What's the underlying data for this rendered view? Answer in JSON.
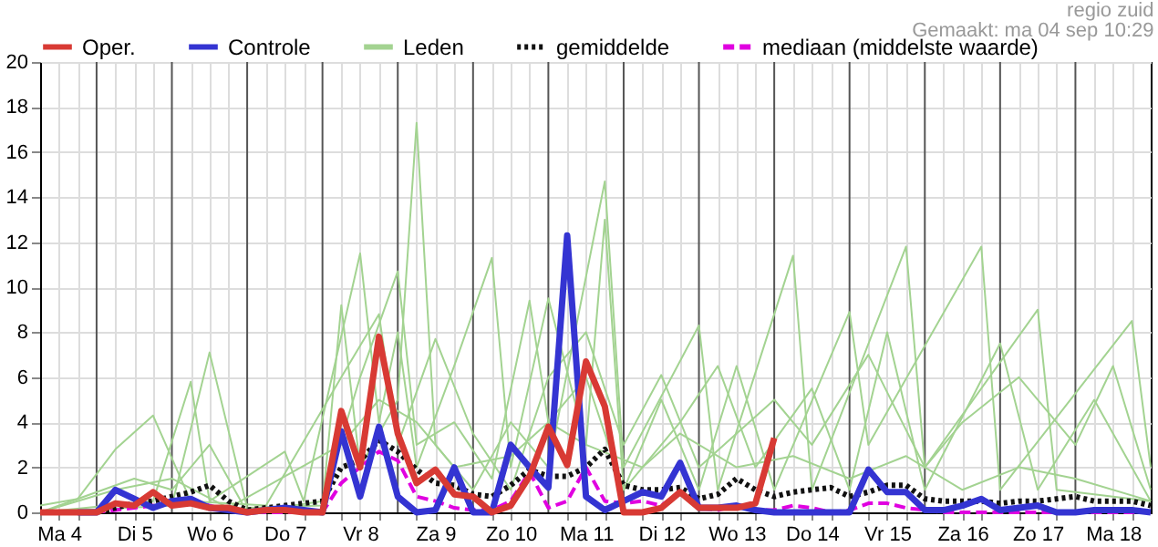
{
  "chart_data": {
    "type": "line",
    "subtitle": "regio zuid",
    "annotations": [
      "Gemaakt: ma 04 sep 10:29"
    ],
    "legend": "top",
    "grid": true,
    "x": [
      "--09-04T06:00",
      "--09-04T12:00",
      "--09-04T18:00",
      "--09-05T00:00",
      "--09-05T06:00",
      "--09-05T12:00",
      "--09-05T18:00",
      "--09-06T00:00",
      "--09-06T06:00",
      "--09-06T12:00",
      "--09-06T18:00",
      "--09-07T00:00",
      "--09-07T06:00",
      "--09-07T12:00",
      "--09-07T18:00",
      "--09-08T00:00",
      "--09-08T06:00",
      "--09-08T12:00",
      "--09-08T18:00",
      "--09-09T00:00",
      "--09-09T06:00",
      "--09-09T12:00",
      "--09-09T18:00",
      "--09-10T00:00",
      "--09-10T06:00",
      "--09-10T12:00",
      "--09-10T18:00",
      "--09-11T00:00",
      "--09-11T06:00",
      "--09-11T12:00",
      "--09-11T18:00",
      "--09-12T00:00",
      "--09-12T06:00",
      "--09-12T12:00",
      "--09-12T18:00",
      "--09-13T00:00",
      "--09-13T06:00",
      "--09-13T12:00",
      "--09-13T18:00",
      "--09-14T00:00",
      "--09-14T06:00",
      "--09-14T12:00",
      "--09-14T18:00",
      "--09-15T00:00",
      "--09-15T06:00",
      "--09-15T12:00",
      "--09-15T18:00",
      "--09-16T00:00",
      "--09-16T06:00",
      "--09-16T12:00",
      "--09-16T18:00",
      "--09-17T00:00",
      "--09-17T06:00",
      "--09-17T12:00",
      "--09-17T18:00",
      "--09-18T00:00",
      "--09-18T06:00",
      "--09-18T12:00",
      "--09-18T18:00",
      "--09-19T00:00"
    ],
    "xlim": [
      "--09-04T06:00",
      "--09-19T00:00"
    ],
    "xticks": [
      {
        "value": "--09-04T12:00",
        "label": "Ma 4"
      },
      {
        "value": "--09-05T12:00",
        "label": "Di 5"
      },
      {
        "value": "--09-06T12:00",
        "label": "Wo 6"
      },
      {
        "value": "--09-07T12:00",
        "label": "Do 7"
      },
      {
        "value": "--09-08T12:00",
        "label": "Vr 8"
      },
      {
        "value": "--09-09T12:00",
        "label": "Za 9"
      },
      {
        "value": "--09-10T12:00",
        "label": "Zo 10"
      },
      {
        "value": "--09-11T12:00",
        "label": "Ma 11"
      },
      {
        "value": "--09-12T12:00",
        "label": "Di 12"
      },
      {
        "value": "--09-13T12:00",
        "label": "Wo 13"
      },
      {
        "value": "--09-14T12:00",
        "label": "Do 14"
      },
      {
        "value": "--09-15T12:00",
        "label": "Vr 15"
      },
      {
        "value": "--09-16T12:00",
        "label": "Za 16"
      },
      {
        "value": "--09-17T12:00",
        "label": "Zo 17"
      },
      {
        "value": "--09-18T12:00",
        "label": "Ma 18"
      },
      {
        "value": "--09-04T06:00",
        "label": null
      },
      {
        "value": "--09-04T18:00",
        "label": null
      },
      {
        "value": "--09-05T06:00",
        "label": null
      },
      {
        "value": "--09-05T18:00",
        "label": null
      },
      {
        "value": "--09-06T06:00",
        "label": null
      },
      {
        "value": "--09-06T18:00",
        "label": null
      },
      {
        "value": "--09-07T06:00",
        "label": null
      },
      {
        "value": "--09-07T18:00",
        "label": null
      },
      {
        "value": "--09-08T06:00",
        "label": null
      },
      {
        "value": "--09-08T18:00",
        "label": null
      },
      {
        "value": "--09-09T06:00",
        "label": null
      },
      {
        "value": "--09-09T18:00",
        "label": null
      },
      {
        "value": "--09-10T06:00",
        "label": null
      },
      {
        "value": "--09-10T18:00",
        "label": null
      },
      {
        "value": "--09-11T06:00",
        "label": null
      },
      {
        "value": "--09-11T18:00",
        "label": null
      },
      {
        "value": "--09-12T06:00",
        "label": null
      },
      {
        "value": "--09-12T18:00",
        "label": null
      },
      {
        "value": "--09-13T06:00",
        "label": null
      },
      {
        "value": "--09-13T18:00",
        "label": null
      },
      {
        "value": "--09-14T06:00",
        "label": null
      },
      {
        "value": "--09-14T18:00",
        "label": null
      },
      {
        "value": "--09-15T06:00",
        "label": null
      },
      {
        "value": "--09-15T18:00",
        "label": null
      },
      {
        "value": "--09-16T06:00",
        "label": null
      },
      {
        "value": "--09-16T18:00",
        "label": null
      },
      {
        "value": "--09-17T06:00",
        "label": null
      },
      {
        "value": "--09-17T18:00",
        "label": null
      },
      {
        "value": "--09-18T06:00",
        "label": null
      },
      {
        "value": "--09-18T18:00",
        "label": null
      }
    ],
    "ylim": [
      0,
      20
    ],
    "yticks": [
      0,
      2,
      4,
      6,
      8,
      10,
      12,
      14,
      16,
      18,
      20
    ],
    "ref_lines": [
      {
        "axis": "x",
        "value": "--09-05",
        "color": "#555555"
      },
      {
        "axis": "x",
        "value": "--09-06",
        "color": "#555555"
      },
      {
        "axis": "x",
        "value": "--09-07",
        "color": "#555555"
      },
      {
        "axis": "x",
        "value": "--09-08",
        "color": "#555555"
      },
      {
        "axis": "x",
        "value": "--09-09",
        "color": "#555555"
      },
      {
        "axis": "x",
        "value": "--09-10",
        "color": "#555555"
      },
      {
        "axis": "x",
        "value": "--09-11",
        "color": "#555555"
      },
      {
        "axis": "x",
        "value": "--09-12",
        "color": "#555555"
      },
      {
        "axis": "x",
        "value": "--09-13",
        "color": "#555555"
      },
      {
        "axis": "x",
        "value": "--09-14",
        "color": "#555555"
      },
      {
        "axis": "x",
        "value": "--09-15",
        "color": "#555555"
      },
      {
        "axis": "x",
        "value": "--09-16",
        "color": "#555555"
      },
      {
        "axis": "x",
        "value": "--09-17",
        "color": "#555555"
      },
      {
        "axis": "x",
        "value": "--09-18",
        "color": "#555555"
      }
    ],
    "series": [
      {
        "name": "Oper.",
        "color": "#d83a34",
        "values": [
          0,
          0,
          0,
          0,
          0.4,
          0.3,
          0.9,
          0.3,
          0.4,
          0.2,
          0.2,
          0,
          0.1,
          0.1,
          0,
          0,
          4.5,
          2.0,
          7.8,
          3.5,
          1.3,
          1.9,
          0.8,
          0.7,
          0,
          0.3,
          1.6,
          3.8,
          2.1,
          6.7,
          4.7,
          0,
          0,
          0.2,
          0.9,
          0.2,
          0.2,
          0.2,
          0.4,
          3.3,
          null,
          null,
          null,
          null,
          null,
          null,
          null,
          null,
          null,
          null,
          null,
          null,
          null,
          null,
          null,
          null,
          null,
          null,
          null,
          null
        ]
      },
      {
        "name": "Controle",
        "color": "#3434d2",
        "values": [
          null,
          null,
          0,
          0,
          1.0,
          0.6,
          0.2,
          0.5,
          0.6,
          0.2,
          0.1,
          0,
          0.1,
          0.2,
          0.1,
          0,
          3.6,
          0.7,
          3.8,
          0.7,
          0,
          0.1,
          2.0,
          0,
          0,
          3.0,
          2.0,
          1.1,
          12.3,
          0.7,
          0.1,
          0.5,
          0.9,
          0.7,
          2.2,
          0.2,
          0.2,
          0.3,
          0.1,
          0,
          0,
          0,
          0,
          0,
          1.9,
          0.9,
          0.9,
          0.1,
          0.1,
          0.3,
          0.6,
          0.1,
          0.2,
          0.3,
          0,
          0,
          0.1,
          0.1,
          0.1,
          0
        ]
      },
      {
        "name": "Leden",
        "color": "#a3d391",
        "x": [
          "--09-04T06:00",
          "--09-06T00:00",
          "--09-06T12:00",
          "--09-07T00:00",
          "--09-08T00:00",
          "--09-08T06:00",
          "--09-08T12:00",
          "--09-09T00:00",
          "--09-09T06:00",
          "--09-09T12:00",
          "--09-10T00:00",
          "--09-10T12:00",
          "--09-11T00:00",
          "--09-11T18:00",
          "--09-12T00:00",
          "--09-13T00:00",
          "--09-13T06:00",
          "--09-14T06:00",
          "--09-14T12:00",
          "--09-15T18:00",
          "--09-16T00:00",
          "--09-17T12:00",
          "--09-17T18:00",
          "--09-19T00:00"
        ],
        "values": [
          0,
          0.3,
          7.1,
          0.2,
          0.3,
          9.2,
          2,
          5,
          17.3,
          3,
          1,
          4,
          2,
          14.7,
          2,
          8.3,
          1,
          11.4,
          1,
          11.8,
          2,
          9,
          1,
          0.5
        ]
      },
      {
        "color": "#a3d391",
        "x": [
          "--09-04T06:00",
          "--09-05T18:00",
          "--09-06T06:00",
          "--09-06T12:00",
          "--09-07T12:00",
          "--09-07T18:00",
          "--09-08T12:00",
          "--09-08T18:00",
          "--09-09T00:00",
          "--09-09T06:00",
          "--09-09T18:00",
          "--09-10T06:00",
          "--09-10T12:00",
          "--09-11T00:00",
          "--09-11T12:00",
          "--09-11T18:00",
          "--09-12T00:00",
          "--09-12T12:00",
          "--09-13T00:00",
          "--09-13T12:00",
          "--09-14T00:00",
          "--09-15T00:00",
          "--09-15T06:00",
          "--09-16T18:00",
          "--09-17T00:00",
          "--09-18T18:00",
          "--09-19T00:00"
        ],
        "values": [
          0,
          0.5,
          5.8,
          0.5,
          2.7,
          0.5,
          11.5,
          4,
          8,
          2,
          6.5,
          11.3,
          2,
          9.5,
          3,
          13,
          1,
          5,
          1,
          6.5,
          1,
          8.9,
          3,
          11.8,
          1,
          8.5,
          2
        ]
      },
      {
        "color": "#a3d391",
        "x": [
          "--09-04T06:00",
          "--09-04T18:00",
          "--09-05T06:00",
          "--09-05T18:00",
          "--09-06T06:00",
          "--09-07T06:00",
          "--09-08T06:00",
          "--09-08T18:00",
          "--09-09T00:00",
          "--09-09T12:00",
          "--09-10T00:00",
          "--09-10T12:00",
          "--09-11T00:00",
          "--09-11T12:00",
          "--09-12T00:00",
          "--09-12T12:00",
          "--09-13T00:00",
          "--09-14T00:00",
          "--09-14T12:00",
          "--09-15T06:00",
          "--09-16T00:00",
          "--09-16T12:00",
          "--09-17T06:00",
          "--09-18T00:00",
          "--09-18T12:00",
          "--09-19T00:00"
        ],
        "values": [
          0.3,
          0.6,
          2.8,
          4.3,
          0.5,
          0.3,
          6,
          8.8,
          3,
          7.7,
          3.5,
          1,
          6,
          8,
          3,
          6.1,
          2,
          5,
          3,
          7,
          2,
          4,
          6,
          3,
          6.5,
          1
        ]
      },
      {
        "color": "#a3d391",
        "x": [
          "--09-04T06:00",
          "--09-05T12:00",
          "--09-06T00:00",
          "--09-06T12:00",
          "--09-07T00:00",
          "--09-08T00:00",
          "--09-08T12:00",
          "--09-09T00:00",
          "--09-09T06:00",
          "--09-09T18:00",
          "--09-10T06:00",
          "--09-10T18:00",
          "--09-11T00:00",
          "--09-11T12:00",
          "--09-12T00:00",
          "--09-12T18:00",
          "--09-13T06:00",
          "--09-13T18:00",
          "--09-14T12:00",
          "--09-15T00:00",
          "--09-15T12:00",
          "--09-16T00:00",
          "--09-17T00:00",
          "--09-17T12:00",
          "--09-18T06:00",
          "--09-19T00:00"
        ],
        "values": [
          0,
          1.5,
          1,
          3,
          0,
          0.5,
          6,
          10.7,
          3,
          4,
          1.5,
          9.4,
          4,
          6,
          1,
          4,
          6.5,
          2,
          5.5,
          1,
          8,
          1,
          7.5,
          1,
          5,
          0.5
        ]
      },
      {
        "color": "#a3d391",
        "x": [
          "--09-04T06:00",
          "--09-05T06:00",
          "--09-06T00:00",
          "--09-06T18:00",
          "--09-08T06:00",
          "--09-08T18:00",
          "--09-09T06:00",
          "--09-09T18:00",
          "--09-10T12:00",
          "--09-11T00:00",
          "--09-11T12:00",
          "--09-12T06:00",
          "--09-12T18:00",
          "--09-13T12:00",
          "--09-14T06:00",
          "--09-15T00:00",
          "--09-15T18:00",
          "--09-16T12:00",
          "--09-17T06:00",
          "--09-18T00:00",
          "--09-19T00:00"
        ],
        "values": [
          0,
          1,
          1.5,
          0.2,
          3,
          5,
          4,
          2,
          2.5,
          4,
          3,
          2,
          3.5,
          2,
          2.5,
          1.5,
          2.5,
          1,
          2,
          1.5,
          0.5
        ]
      },
      {
        "name": "gemiddelde",
        "color": "#111111",
        "line_style": "dotted",
        "values": [
          0,
          0,
          0,
          0,
          0.2,
          0.4,
          0.5,
          0.7,
          0.9,
          1.2,
          0.5,
          0.1,
          0.2,
          0.3,
          0.4,
          0.5,
          2.0,
          2.3,
          3.2,
          2.7,
          1.9,
          1.3,
          1.2,
          0.8,
          0.7,
          1.2,
          1.9,
          1.6,
          1.6,
          2.0,
          2.8,
          1.2,
          1.0,
          1.0,
          1.1,
          0.6,
          0.8,
          1.5,
          1.0,
          0.7,
          0.9,
          1.0,
          1.1,
          0.7,
          0.9,
          1.2,
          1.2,
          0.6,
          0.5,
          0.5,
          0.5,
          0.4,
          0.5,
          0.5,
          0.6,
          0.7,
          0.5,
          0.5,
          0.5,
          0.3
        ]
      },
      {
        "name": "mediaan (middelste waarde)",
        "color": "#e000e0",
        "line_style": "dashed",
        "values": [
          null,
          null,
          0,
          0,
          0.1,
          0.2,
          0.3,
          0.4,
          0.6,
          0.3,
          0.1,
          0,
          0,
          0,
          0,
          0,
          1.3,
          2.0,
          2.7,
          2.3,
          0.7,
          0.5,
          0.2,
          0.1,
          0.1,
          0.5,
          1.8,
          0.2,
          0.5,
          2.0,
          0.5,
          0.4,
          0.5,
          0.3,
          0.9,
          0.2,
          0.1,
          0.3,
          0.1,
          0.1,
          0.3,
          0.2,
          0,
          0.1,
          0.4,
          0.4,
          0.2,
          0.1,
          0,
          0,
          0,
          0,
          0,
          0,
          0,
          0,
          0,
          0,
          0,
          0
        ]
      }
    ]
  }
}
